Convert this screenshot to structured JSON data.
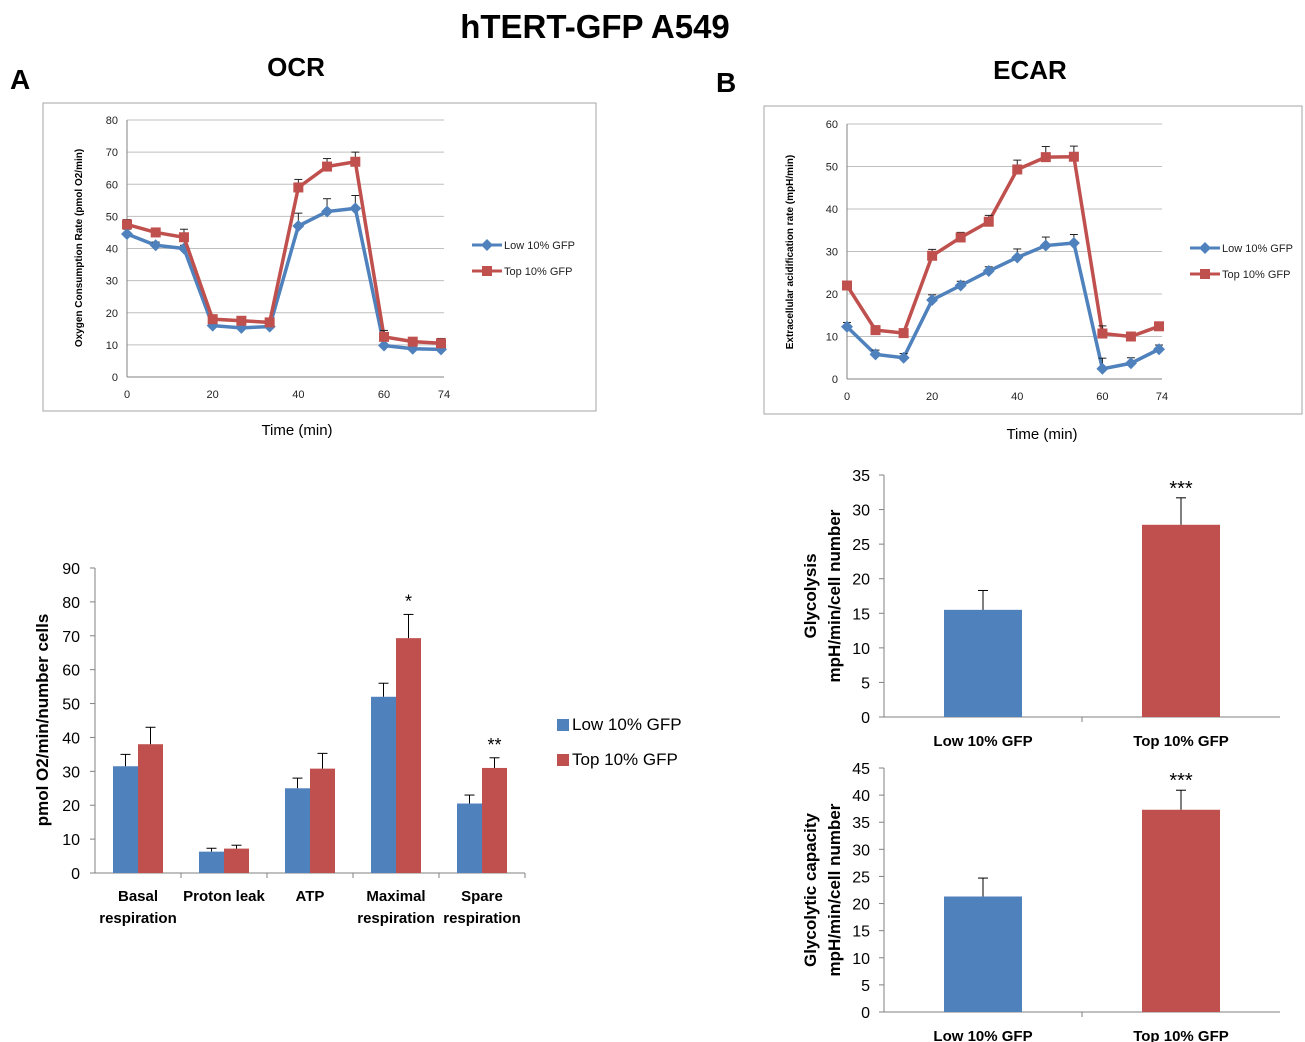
{
  "figure": {
    "title": "hTERT-GFP A549",
    "panel_a_letter": "A",
    "panel_b_letter": "B",
    "panel_a_title": "OCR",
    "panel_b_title": "ECAR"
  },
  "colors": {
    "low": "#4F81BD",
    "top": "#C0504D",
    "grid": "#bfbfbf",
    "axis": "#808080",
    "frame": "#a6a6a6"
  },
  "chart_data": [
    {
      "id": "ocr-line",
      "type": "line",
      "xlabel": "Time (min)",
      "ylabel": "Oxygen Consumption Rate (pmol O2/min)",
      "ylim": [
        0,
        80
      ],
      "yticks": [
        0,
        10,
        20,
        30,
        40,
        50,
        60,
        70,
        80
      ],
      "xlim": [
        0,
        74
      ],
      "xticks": [
        0,
        20,
        40,
        60,
        74
      ],
      "grid": true,
      "legend_position": "right",
      "series": [
        {
          "name": "Low 10% GFP",
          "color": "#4F81BD",
          "marker": "diamond",
          "x": [
            0,
            6.7,
            13.3,
            20,
            26.7,
            33.3,
            40,
            46.7,
            53.3,
            60,
            66.7,
            73.3
          ],
          "y": [
            44.5,
            41,
            40,
            16,
            15.3,
            15.7,
            47,
            51.5,
            52.5,
            9.8,
            8.8,
            8.6
          ],
          "err": [
            1.5,
            1,
            1,
            1,
            1,
            1,
            4,
            4,
            4,
            1.5,
            1,
            1
          ]
        },
        {
          "name": "Top 10% GFP",
          "color": "#C0504D",
          "marker": "square",
          "x": [
            0,
            6.7,
            13.3,
            20,
            26.7,
            33.3,
            40,
            46.7,
            53.3,
            60,
            66.7,
            73.3
          ],
          "y": [
            47.5,
            45,
            43.5,
            18,
            17.5,
            17,
            59,
            65.5,
            67,
            12.5,
            11,
            10.5
          ],
          "err": [
            1.5,
            1,
            2.5,
            1,
            1,
            1,
            2.5,
            2.5,
            3,
            2,
            1,
            1.5
          ]
        }
      ]
    },
    {
      "id": "ecar-line",
      "type": "line",
      "xlabel": "Time (min)",
      "ylabel": "Extracellular acidification rate (mpH/min)",
      "ylim": [
        0,
        60
      ],
      "yticks": [
        0,
        10,
        20,
        30,
        40,
        50,
        60
      ],
      "xlim": [
        0,
        74
      ],
      "xticks": [
        0,
        20,
        40,
        60,
        74
      ],
      "grid": true,
      "legend_position": "right",
      "series": [
        {
          "name": "Low 10% GFP",
          "color": "#4F81BD",
          "marker": "diamond",
          "x": [
            0,
            6.7,
            13.3,
            20,
            26.7,
            33.3,
            40,
            46.7,
            53.3,
            60,
            66.7,
            73.3
          ],
          "y": [
            12.3,
            5.8,
            5,
            18.6,
            22,
            25.4,
            28.6,
            31.4,
            32,
            2.4,
            3.7,
            7
          ],
          "err": [
            1,
            1,
            1,
            1.2,
            1,
            1,
            2,
            2,
            2,
            2.5,
            1.3,
            1
          ]
        },
        {
          "name": "Top 10% GFP",
          "color": "#C0504D",
          "marker": "square",
          "x": [
            0,
            6.7,
            13.3,
            20,
            26.7,
            33.3,
            40,
            46.7,
            53.3,
            60,
            66.7,
            73.3
          ],
          "y": [
            22,
            11.5,
            10.8,
            29,
            33.3,
            37,
            49.3,
            52.2,
            52.3,
            10.7,
            10,
            12.4
          ],
          "err": [
            1,
            1,
            0.7,
            1.5,
            1.2,
            1.5,
            2.2,
            2.5,
            2.5,
            1.8,
            0.6,
            0.8
          ]
        }
      ]
    },
    {
      "id": "ocr-bar",
      "type": "bar",
      "categories": [
        [
          "Basal",
          "respiration"
        ],
        [
          "Proton leak"
        ],
        [
          "ATP"
        ],
        [
          "Maximal",
          "respiration"
        ],
        [
          "Spare",
          "respiration"
        ]
      ],
      "ylabel": "pmol O2/min/number cells",
      "ylim": [
        0,
        90
      ],
      "yticks": [
        0,
        10,
        20,
        30,
        40,
        50,
        60,
        70,
        80,
        90
      ],
      "legend_position": "right",
      "significance": [
        "",
        "",
        "",
        "*",
        "**"
      ],
      "series": [
        {
          "name": "Low 10% GFP",
          "color": "#4F81BD",
          "values": [
            31.5,
            6.3,
            25,
            52,
            20.5
          ],
          "err": [
            3.5,
            1,
            3,
            4,
            2.5
          ]
        },
        {
          "name": "Top 10% GFP",
          "color": "#C0504D",
          "values": [
            38,
            7.2,
            30.8,
            69.3,
            31
          ],
          "err": [
            5,
            1,
            4.5,
            7,
            3
          ]
        }
      ]
    },
    {
      "id": "glycolysis-bar",
      "type": "bar",
      "categories": [
        "Low 10% GFP",
        "Top 10% GFP"
      ],
      "ylabel_lines": [
        "Glycolysis",
        "mpH/min/cell number"
      ],
      "ylim": [
        0,
        35
      ],
      "yticks": [
        0,
        5,
        10,
        15,
        20,
        25,
        30,
        35
      ],
      "values": [
        15.5,
        27.8
      ],
      "err": [
        2.8,
        3.9
      ],
      "colors": [
        "#4F81BD",
        "#C0504D"
      ],
      "significance": [
        "",
        "***"
      ]
    },
    {
      "id": "glycolytic-capacity-bar",
      "type": "bar",
      "categories": [
        "Low 10% GFP",
        "Top 10% GFP"
      ],
      "ylabel_lines": [
        "Glycolytic capacity",
        "mpH/min/cell number"
      ],
      "ylim": [
        0,
        45
      ],
      "yticks": [
        0,
        5,
        10,
        15,
        20,
        25,
        30,
        35,
        40,
        45
      ],
      "values": [
        21.3,
        37.3
      ],
      "err": [
        3.4,
        3.6
      ],
      "colors": [
        "#4F81BD",
        "#C0504D"
      ],
      "significance": [
        "",
        "***"
      ]
    }
  ]
}
